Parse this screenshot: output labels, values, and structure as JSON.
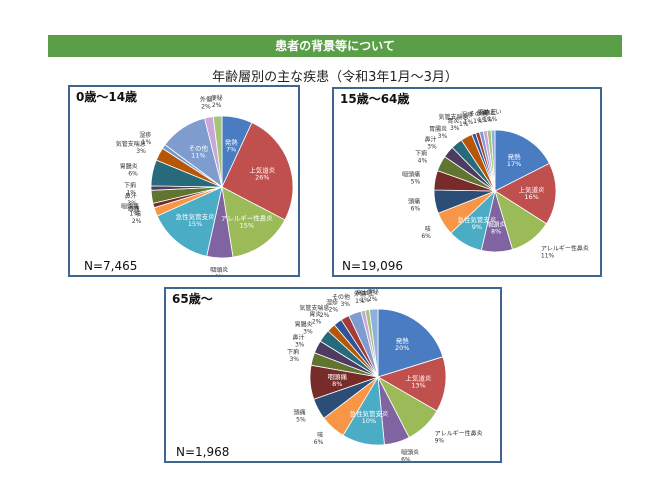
{
  "header": {
    "title": "患者の背景等について"
  },
  "subtitle": "年齢層別の主な疾患（令和3年1月～3月）",
  "chart_data": [
    {
      "type": "pie",
      "title": "0歳～14歳",
      "n_label": "N=7,465",
      "slices": [
        {
          "label": "発熱",
          "value": 7,
          "pct": "7%",
          "color": "#4a7cc2",
          "inside": true
        },
        {
          "label": "上気道炎",
          "value": 26,
          "pct": "26%",
          "color": "#c0504d",
          "inside": true
        },
        {
          "label": "アレルギー性鼻炎",
          "value": 15,
          "pct": "15%",
          "color": "#9bbb59",
          "inside": true
        },
        {
          "label": "咽頭炎",
          "value": 6,
          "pct": "6%",
          "color": "#8064a2",
          "inside": false
        },
        {
          "label": "急性気管支炎",
          "value": 15,
          "pct": "15%",
          "color": "#4bacc6",
          "inside": true
        },
        {
          "label": "咳",
          "value": 2,
          "pct": "2%",
          "color": "#f79646",
          "inside": false
        },
        {
          "label": "頭痛",
          "value": 0,
          "pct": "",
          "color": "#2c4d75",
          "inside": false
        },
        {
          "label": "咽頭痛",
          "value": 1,
          "pct": "1%",
          "color": "#772c2a",
          "inside": false
        },
        {
          "label": "鼻汁",
          "value": 3,
          "pct": "3%",
          "color": "#5f7530",
          "inside": false
        },
        {
          "label": "下痢",
          "value": 1,
          "pct": "1%",
          "color": "#4d3b62",
          "inside": false
        },
        {
          "label": "胃腸炎",
          "value": 6,
          "pct": "6%",
          "color": "#276a7c",
          "inside": false
        },
        {
          "label": "気管支喘息",
          "value": 3,
          "pct": "3%",
          "color": "#b65708",
          "inside": false
        },
        {
          "label": "湿疹",
          "value": 1,
          "pct": "1%",
          "color": "#729aca",
          "inside": false
        },
        {
          "label": "その他",
          "value": 11,
          "pct": "11%",
          "color": "#7f9ccf",
          "inside": true
        },
        {
          "label": "外傷",
          "value": 2,
          "pct": "2%",
          "color": "#c9a6d8",
          "inside": false
        },
        {
          "label": "便秘",
          "value": 2,
          "pct": "2%",
          "color": "#a5c479",
          "inside": false
        }
      ]
    },
    {
      "type": "pie",
      "title": "15歳～64歳",
      "n_label": "N=19,096",
      "slices": [
        {
          "label": "発熱",
          "value": 17,
          "pct": "17%",
          "color": "#4a7cc2",
          "inside": true
        },
        {
          "label": "上気道炎",
          "value": 16,
          "pct": "16%",
          "color": "#c0504d",
          "inside": true
        },
        {
          "label": "アレルギー性鼻炎",
          "value": 11,
          "pct": "11%",
          "color": "#9bbb59",
          "inside": false
        },
        {
          "label": "咽頭炎",
          "value": 8,
          "pct": "8%",
          "color": "#8064a2",
          "inside": true
        },
        {
          "label": "急性気管支炎",
          "value": 9,
          "pct": "9%",
          "color": "#4bacc6",
          "inside": true
        },
        {
          "label": "咳",
          "value": 6,
          "pct": "6%",
          "color": "#f79646",
          "inside": false
        },
        {
          "label": "頭痛",
          "value": 6,
          "pct": "6%",
          "color": "#2c4d75",
          "inside": false
        },
        {
          "label": "咽頭痛",
          "value": 5,
          "pct": "5%",
          "color": "#772c2a",
          "inside": false
        },
        {
          "label": "下痢",
          "value": 4,
          "pct": "4%",
          "color": "#5f7530",
          "inside": false
        },
        {
          "label": "鼻汁",
          "value": 3,
          "pct": "3%",
          "color": "#4d3b62",
          "inside": false
        },
        {
          "label": "胃腸炎",
          "value": 3,
          "pct": "3%",
          "color": "#276a7c",
          "inside": false
        },
        {
          "label": "胃炎",
          "value": 3,
          "pct": "3%",
          "color": "#b65708",
          "inside": false
        },
        {
          "label": "気管支喘息",
          "value": 1,
          "pct": "1%",
          "color": "#2f5597",
          "inside": false
        },
        {
          "label": "湿疹",
          "value": 1,
          "pct": "1%",
          "color": "#a33b38",
          "inside": false
        },
        {
          "label": "その他",
          "value": 1,
          "pct": "1%",
          "color": "#7f9ccf",
          "inside": false
        },
        {
          "label": "外傷",
          "value": 1,
          "pct": "1%",
          "color": "#c9a6d8",
          "inside": false
        },
        {
          "label": "高血圧",
          "value": 1,
          "pct": "1%",
          "color": "#a5c479",
          "inside": false
        },
        {
          "label": "めまい",
          "value": 1,
          "pct": "1%",
          "color": "#8fb0dc",
          "inside": false
        }
      ]
    },
    {
      "type": "pie",
      "title": "65歳～",
      "n_label": "N=1,968",
      "slices": [
        {
          "label": "発熱",
          "value": 20,
          "pct": "20%",
          "color": "#4a7cc2",
          "inside": true
        },
        {
          "label": "上気道炎",
          "value": 13,
          "pct": "13%",
          "color": "#c0504d",
          "inside": true
        },
        {
          "label": "アレルギー性鼻炎",
          "value": 9,
          "pct": "9%",
          "color": "#9bbb59",
          "inside": false
        },
        {
          "label": "咽頭炎",
          "value": 6,
          "pct": "6%",
          "color": "#8064a2",
          "inside": false
        },
        {
          "label": "急性気管支炎",
          "value": 10,
          "pct": "10%",
          "color": "#4bacc6",
          "inside": true
        },
        {
          "label": "咳",
          "value": 6,
          "pct": "6%",
          "color": "#f79646",
          "inside": false
        },
        {
          "label": "頭痛",
          "value": 5,
          "pct": "5%",
          "color": "#2c4d75",
          "inside": false
        },
        {
          "label": "咽頭痛",
          "value": 8,
          "pct": "8%",
          "color": "#772c2a",
          "inside": true
        },
        {
          "label": "下痢",
          "value": 3,
          "pct": "3%",
          "color": "#5f7530",
          "inside": false
        },
        {
          "label": "鼻汁",
          "value": 3,
          "pct": "3%",
          "color": "#4d3b62",
          "inside": false
        },
        {
          "label": "胃腸炎",
          "value": 3,
          "pct": "3%",
          "color": "#276a7c",
          "inside": false
        },
        {
          "label": "胃炎",
          "value": 2,
          "pct": "2%",
          "color": "#b65708",
          "inside": false
        },
        {
          "label": "気管支喘息",
          "value": 2,
          "pct": "2%",
          "color": "#2f5597",
          "inside": false
        },
        {
          "label": "湿疹",
          "value": 2,
          "pct": "2%",
          "color": "#a33b38",
          "inside": false
        },
        {
          "label": "その他",
          "value": 3,
          "pct": "3%",
          "color": "#7f9ccf",
          "inside": false
        },
        {
          "label": "外傷",
          "value": 1,
          "pct": "1%",
          "color": "#c9a6d8",
          "inside": false
        },
        {
          "label": "高血圧",
          "value": 1,
          "pct": "1%",
          "color": "#a5c479",
          "inside": false
        },
        {
          "label": "便秘",
          "value": 2,
          "pct": "2%",
          "color": "#8fb0dc",
          "inside": false
        }
      ]
    }
  ]
}
